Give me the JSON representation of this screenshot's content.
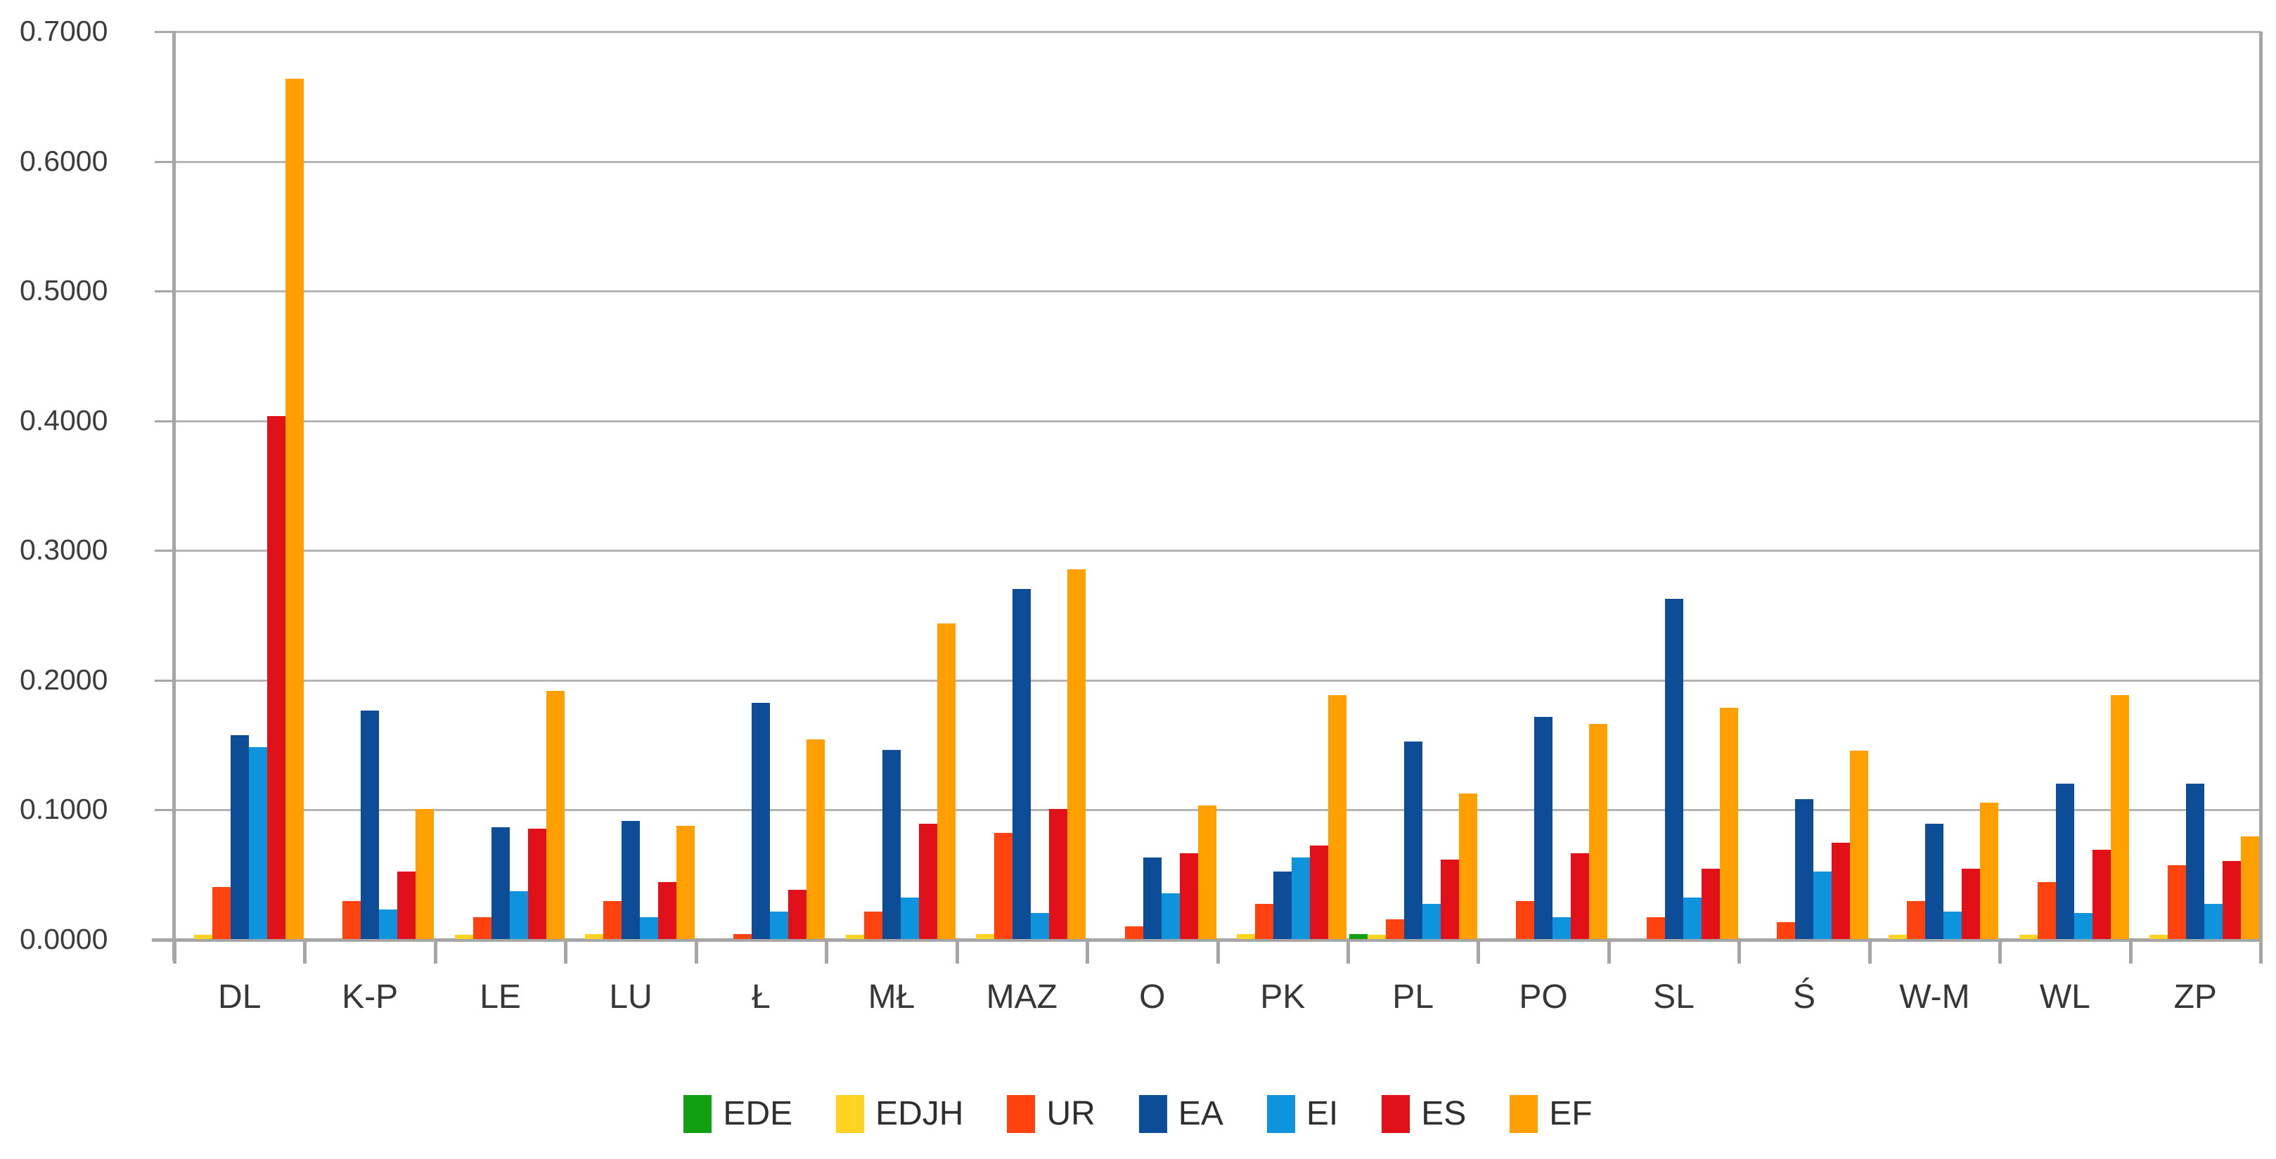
{
  "chart_data": {
    "type": "bar",
    "title": "",
    "xlabel": "",
    "ylabel": "",
    "categories": [
      "DL",
      "K-P",
      "LE",
      "LU",
      "Ł",
      "MŁ",
      "MAZ",
      "O",
      "PK",
      "PL",
      "PO",
      "SL",
      "Ś",
      "W-M",
      "WL",
      "ZP"
    ],
    "series": [
      {
        "name": "EDE",
        "color": "#11A011",
        "values": [
          0,
          0,
          0,
          0,
          0,
          0,
          0,
          0,
          0,
          0.004,
          0,
          0,
          0,
          0,
          0,
          0
        ]
      },
      {
        "name": "EDJH",
        "color": "#FFD320",
        "values": [
          0.003,
          0,
          0.003,
          0.004,
          0,
          0.003,
          0.004,
          0,
          0.004,
          0.003,
          0,
          0,
          0,
          0.003,
          0.003,
          0.003
        ]
      },
      {
        "name": "UR",
        "color": "#FF420E",
        "values": [
          0.04,
          0.029,
          0.017,
          0.029,
          0.004,
          0.021,
          0.082,
          0.01,
          0.027,
          0.015,
          0.029,
          0.017,
          0.013,
          0.029,
          0.044,
          0.057
        ]
      },
      {
        "name": "EA",
        "color": "#0D4C96",
        "values": [
          0.157,
          0.176,
          0.086,
          0.091,
          0.182,
          0.146,
          0.27,
          0.063,
          0.052,
          0.152,
          0.171,
          0.262,
          0.108,
          0.089,
          0.12,
          0.12
        ]
      },
      {
        "name": "EI",
        "color": "#0E94DC",
        "values": [
          0.148,
          0.023,
          0.037,
          0.017,
          0.021,
          0.032,
          0.02,
          0.035,
          0.063,
          0.027,
          0.017,
          0.032,
          0.052,
          0.021,
          0.02,
          0.027
        ]
      },
      {
        "name": "ES",
        "color": "#E11019",
        "values": [
          0.403,
          0.052,
          0.085,
          0.044,
          0.038,
          0.089,
          0.1,
          0.066,
          0.072,
          0.061,
          0.066,
          0.054,
          0.074,
          0.054,
          0.069,
          0.06
        ]
      },
      {
        "name": "EF",
        "color": "#FFA000",
        "values": [
          0.663,
          0.1,
          0.191,
          0.087,
          0.154,
          0.243,
          0.285,
          0.103,
          0.188,
          0.112,
          0.166,
          0.178,
          0.145,
          0.105,
          0.188,
          0.079
        ]
      }
    ],
    "ylim": [
      0,
      0.7
    ],
    "y_ticks": [
      "0.7000",
      "0.6000",
      "0.5000",
      "0.4000",
      "0.3000",
      "0.2000",
      "0.1000",
      "0.0000"
    ],
    "grid": true,
    "legend_position": "bottom",
    "legend_labels": [
      "EDE",
      "EDJH",
      "UR",
      "EA",
      "EI",
      "ES",
      "EF"
    ]
  },
  "colors": {
    "gridline": "#b4b4b4",
    "axis": "#a6a6a6",
    "text": "#3c3c3c",
    "background": "#ffffff"
  }
}
